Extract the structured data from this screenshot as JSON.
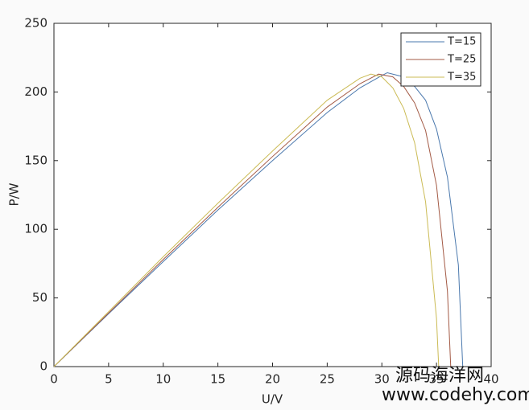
{
  "chart_data": {
    "type": "line",
    "xlabel": "U/V",
    "ylabel": "P/W",
    "xlim": [
      0,
      40
    ],
    "xticks": [
      0,
      5,
      10,
      15,
      20,
      25,
      30,
      35,
      40
    ],
    "ylim": [
      0,
      250
    ],
    "yticks": [
      0,
      50,
      100,
      150,
      200,
      250
    ],
    "legend": "upper right",
    "series": [
      {
        "name": "T=15",
        "color": "#4a78ad",
        "x": [
          0,
          5,
          10,
          15,
          20,
          25,
          28,
          30,
          30.5,
          32,
          33,
          34,
          35,
          36,
          37,
          37.4
        ],
        "values": [
          0,
          38.5,
          76.5,
          114,
          150,
          185,
          203,
          212,
          214,
          211,
          204,
          194,
          173,
          138,
          74,
          0
        ]
      },
      {
        "name": "T=25",
        "color": "#a35a45",
        "x": [
          0,
          5,
          10,
          15,
          20,
          25,
          28,
          29.7,
          31,
          32,
          33,
          34,
          35,
          36,
          36.3
        ],
        "values": [
          0,
          39,
          78,
          116,
          153,
          189,
          206,
          213,
          211,
          204,
          192,
          172,
          132,
          55,
          0
        ]
      },
      {
        "name": "T=35",
        "color": "#cbbb55",
        "x": [
          0,
          5,
          10,
          15,
          20,
          25,
          28,
          29,
          30,
          31,
          32,
          33,
          34,
          35,
          35.2
        ],
        "values": [
          0,
          40,
          80,
          119,
          157,
          194,
          210,
          213,
          211,
          203,
          188,
          163,
          120,
          35,
          0
        ]
      }
    ]
  },
  "watermark": {
    "title": "源码海洋网",
    "url": "www.codehy.com"
  }
}
